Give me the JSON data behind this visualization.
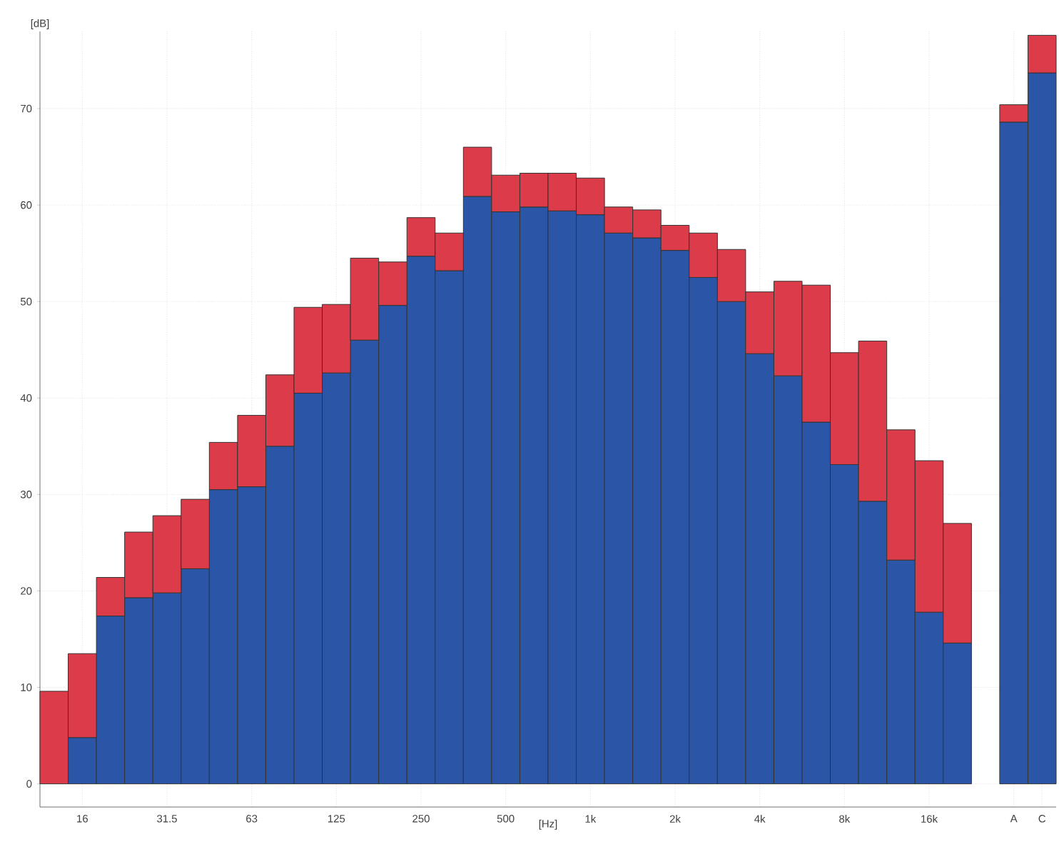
{
  "chart_data": {
    "type": "bar",
    "stacked": true,
    "xlabel": "[Hz]",
    "ylabel": "[dB]",
    "categories": [
      null,
      "16",
      null,
      null,
      "31.5",
      null,
      null,
      "63",
      null,
      null,
      "125",
      null,
      null,
      "250",
      null,
      null,
      "500",
      null,
      null,
      "1k",
      null,
      null,
      "2k",
      null,
      null,
      "4k",
      null,
      null,
      "8k",
      null,
      null,
      "16k",
      null,
      null,
      "A",
      "C"
    ],
    "series": [
      {
        "color": "#2b56a8",
        "values": [
          null,
          4.8,
          17.4,
          19.3,
          19.8,
          22.3,
          30.5,
          30.8,
          35.0,
          40.5,
          42.6,
          46.0,
          49.6,
          54.7,
          53.2,
          60.9,
          59.3,
          59.8,
          59.4,
          59.0,
          57.1,
          56.6,
          55.3,
          52.5,
          50.0,
          44.6,
          42.3,
          37.5,
          33.1,
          29.3,
          23.2,
          17.8,
          14.6,
          null,
          68.6,
          73.7
        ]
      },
      {
        "color": "#dc3c4a",
        "values": [
          9.6,
          8.7,
          4.0,
          6.8,
          8.0,
          7.2,
          4.9,
          7.4,
          7.4,
          8.9,
          7.1,
          8.5,
          4.5,
          4.0,
          3.9,
          5.1,
          3.8,
          3.5,
          3.9,
          3.8,
          2.7,
          2.9,
          2.6,
          4.6,
          5.4,
          6.4,
          9.8,
          14.2,
          11.6,
          16.6,
          13.5,
          15.7,
          12.4,
          null,
          1.8,
          3.9
        ]
      }
    ],
    "ylim": [
      -2.4,
      78
    ],
    "yticks": [
      0,
      10,
      20,
      30,
      40,
      50,
      60,
      70
    ],
    "grid": true
  }
}
